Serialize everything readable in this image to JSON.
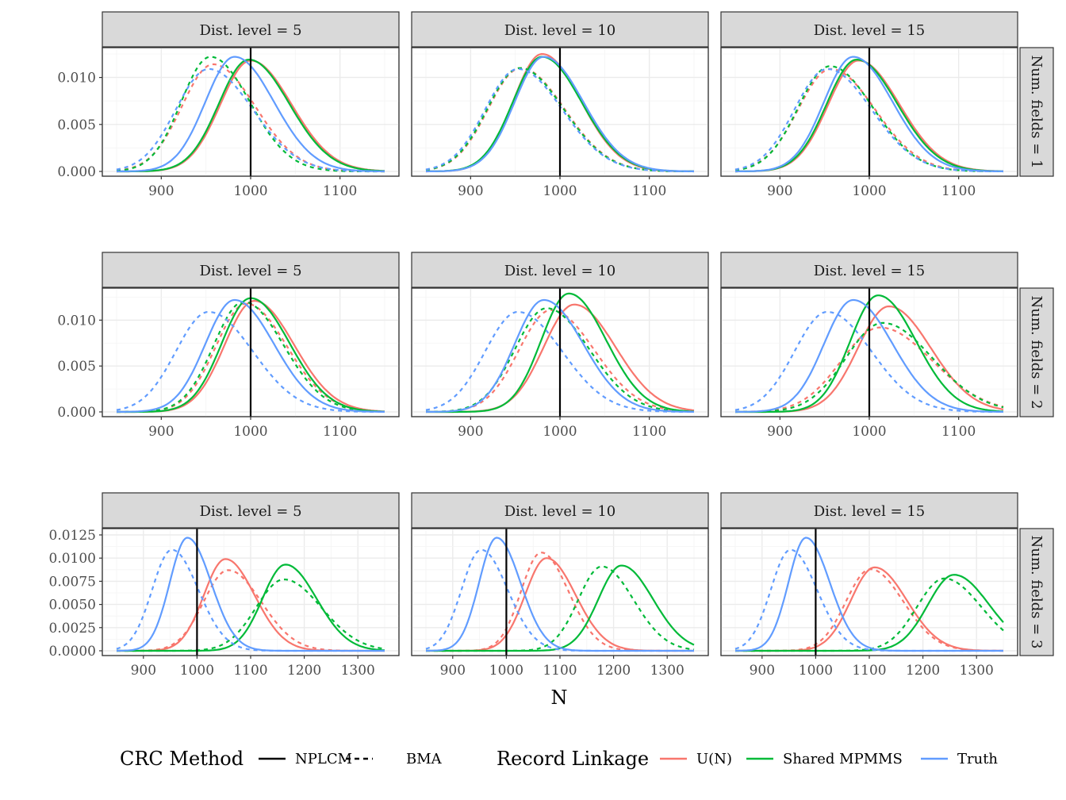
{
  "chart_data": {
    "type": "line",
    "xlabel": "N",
    "ylabel": "",
    "legend": {
      "position": "bottom",
      "groups": [
        {
          "title": "CRC Method",
          "items": [
            {
              "label": "NPLCM",
              "linetype": "solid"
            },
            {
              "label": "BMA",
              "linetype": "dashed"
            }
          ]
        },
        {
          "title": "Record Linkage",
          "items": [
            {
              "label": "U(N)",
              "color": "#F8766D"
            },
            {
              "label": "Shared MPMMS",
              "color": "#00BA38"
            },
            {
              "label": "Truth",
              "color": "#619CFF"
            }
          ]
        }
      ]
    },
    "true_N": 1000,
    "rows": [
      {
        "label": "Num. fields = 1",
        "xlim": [
          850,
          1150
        ],
        "ylim": [
          0,
          0.0125
        ],
        "yticks": [
          "0.000",
          "0.005",
          "0.010"
        ],
        "yvals": [
          0,
          0.005,
          0.01
        ],
        "xticks": [
          900,
          1000,
          1100
        ]
      },
      {
        "label": "Num. fields = 2",
        "xlim": [
          850,
          1150
        ],
        "ylim": [
          0,
          0.0128
        ],
        "yticks": [
          "0.000",
          "0.005",
          "0.010"
        ],
        "yvals": [
          0,
          0.005,
          0.01
        ],
        "xticks": [
          900,
          1000,
          1100
        ]
      },
      {
        "label": "Num. fields = 3",
        "xlim": [
          850,
          1350
        ],
        "ylim": [
          0,
          0.0125
        ],
        "yticks": [
          "0.0000",
          "0.0025",
          "0.0050",
          "0.0075",
          "0.0100",
          "0.0125"
        ],
        "yvals": [
          0,
          0.0025,
          0.005,
          0.0075,
          0.01,
          0.0125
        ],
        "xticks": [
          900,
          1000,
          1100,
          1200,
          1300
        ]
      }
    ],
    "columns": [
      "Dist. level = 5",
      "Dist. level = 10",
      "Dist. level = 15"
    ],
    "series_colors": {
      "U(N)": "#F8766D",
      "Shared MPMMS": "#00BA38",
      "Truth": "#619CFF"
    },
    "panels": [
      [
        {
          "U(N)": {
            "NPLCM": [
              1000,
              0.0118
            ],
            "BMA": [
              958,
              0.0114
            ]
          },
          "Shared MPMMS": {
            "NPLCM": [
              998,
              0.0119
            ],
            "BMA": [
              955,
              0.0122
            ]
          },
          "Truth": {
            "NPLCM": [
              982,
              0.0122
            ],
            "BMA": [
              953,
              0.0109
            ]
          }
        },
        {
          "U(N)": {
            "NPLCM": [
              980,
              0.0125
            ],
            "BMA": [
              956,
              0.011
            ]
          },
          "Shared MPMMS": {
            "NPLCM": [
              980,
              0.0122
            ],
            "BMA": [
              955,
              0.011
            ]
          },
          "Truth": {
            "NPLCM": [
              982,
              0.0122
            ],
            "BMA": [
              953,
              0.0109
            ]
          }
        },
        {
          "U(N)": {
            "NPLCM": [
              988,
              0.0118
            ],
            "BMA": [
              957,
              0.0109
            ]
          },
          "Shared MPMMS": {
            "NPLCM": [
              986,
              0.0119
            ],
            "BMA": [
              956,
              0.0112
            ]
          },
          "Truth": {
            "NPLCM": [
              982,
              0.0122
            ],
            "BMA": [
              953,
              0.0109
            ]
          }
        }
      ],
      [
        {
          "U(N)": {
            "NPLCM": [
              1004,
              0.0121
            ],
            "BMA": [
              995,
              0.0118
            ]
          },
          "Shared MPMMS": {
            "NPLCM": [
              1000,
              0.0124
            ],
            "BMA": [
              992,
              0.012
            ]
          },
          "Truth": {
            "NPLCM": [
              982,
              0.0122
            ],
            "BMA": [
              953,
              0.0109
            ]
          }
        },
        {
          "U(N)": {
            "NPLCM": [
              1016,
              0.0117
            ],
            "BMA": [
              990,
              0.0111
            ]
          },
          "Shared MPMMS": {
            "NPLCM": [
              1010,
              0.0129
            ],
            "BMA": [
              985,
              0.0113
            ]
          },
          "Truth": {
            "NPLCM": [
              982,
              0.0122
            ],
            "BMA": [
              953,
              0.0109
            ]
          }
        },
        {
          "U(N)": {
            "NPLCM": [
              1022,
              0.0115
            ],
            "BMA": [
              1012,
              0.0092
            ]
          },
          "Shared MPMMS": {
            "NPLCM": [
              1010,
              0.0127
            ],
            "BMA": [
              1015,
              0.0097
            ]
          },
          "Truth": {
            "NPLCM": [
              982,
              0.0122
            ],
            "BMA": [
              953,
              0.0109
            ]
          }
        }
      ],
      [
        {
          "U(N)": {
            "NPLCM": [
              1053,
              0.0099
            ],
            "BMA": [
              1058,
              0.0087
            ]
          },
          "Shared MPMMS": {
            "NPLCM": [
              1165,
              0.0093
            ],
            "BMA": [
              1162,
              0.0077
            ]
          },
          "Truth": {
            "NPLCM": [
              982,
              0.0122
            ],
            "BMA": [
              953,
              0.0109
            ]
          }
        },
        {
          "U(N)": {
            "NPLCM": [
              1075,
              0.01
            ],
            "BMA": [
              1065,
              0.0106
            ]
          },
          "Shared MPMMS": {
            "NPLCM": [
              1215,
              0.0092
            ],
            "BMA": [
              1178,
              0.0091
            ]
          },
          "Truth": {
            "NPLCM": [
              982,
              0.0122
            ],
            "BMA": [
              953,
              0.0109
            ]
          }
        },
        {
          "U(N)": {
            "NPLCM": [
              1110,
              0.009
            ],
            "BMA": [
              1102,
              0.0088
            ]
          },
          "Shared MPMMS": {
            "NPLCM": [
              1258,
              0.0082
            ],
            "BMA": [
              1240,
              0.0078
            ]
          },
          "Truth": {
            "NPLCM": [
              982,
              0.0122
            ],
            "BMA": [
              953,
              0.0109
            ]
          }
        }
      ]
    ]
  }
}
